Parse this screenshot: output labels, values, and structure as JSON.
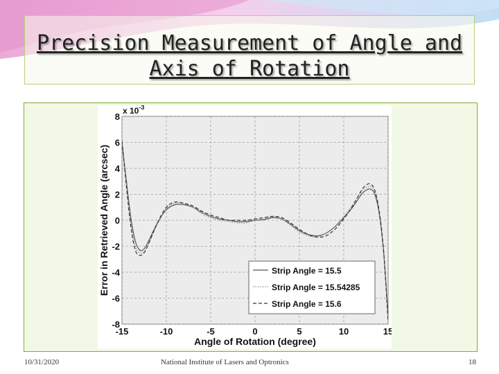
{
  "slide": {
    "title": "Precision Measurement of Angle and Axis of Rotation",
    "footer_date": "10/31/2020",
    "footer_center": "National Institute of Lasers and Optronics",
    "page_number": "18"
  },
  "chart_data": {
    "type": "line",
    "title": "",
    "xlabel": "Angle of Rotation (degree)",
    "ylabel": "Error in Retrieved Angle (arcsec)",
    "y_multiplier": "x 10-3",
    "xlim": [
      -15,
      15
    ],
    "ylim": [
      -8,
      8
    ],
    "xticks": [
      -15,
      -10,
      -5,
      0,
      5,
      10,
      15
    ],
    "yticks": [
      -8,
      -6,
      -4,
      -2,
      0,
      2,
      4,
      6,
      8
    ],
    "grid": true,
    "legend_position": "bottom-right",
    "x": [
      -15,
      -14.5,
      -14,
      -13.5,
      -13,
      -12.5,
      -12,
      -11,
      -10,
      -9,
      -8,
      -7,
      -6,
      -5,
      -4,
      -3,
      -2,
      -1,
      0,
      1,
      2,
      3,
      4,
      5,
      6,
      7,
      8,
      9,
      10,
      11,
      12,
      12.5,
      13,
      13.5,
      14,
      14.5,
      15
    ],
    "series": [
      {
        "name": "Strip Angle = 15.5",
        "dash": "solid",
        "values": [
          6.0,
          3.0,
          0.2,
          -1.6,
          -2.3,
          -2.2,
          -1.6,
          -0.2,
          0.8,
          1.2,
          1.2,
          1.0,
          0.6,
          0.3,
          0.1,
          0.0,
          -0.1,
          -0.1,
          0.0,
          0.05,
          0.2,
          0.1,
          -0.3,
          -0.8,
          -1.1,
          -1.2,
          -1.0,
          -0.5,
          0.2,
          1.0,
          2.0,
          2.3,
          2.4,
          2.0,
          0.5,
          -2.5,
          -7.4
        ]
      },
      {
        "name": "Strip Angle = 15.54285",
        "dash": "dotted",
        "values": [
          6.0,
          2.8,
          -0.2,
          -2.0,
          -2.5,
          -2.4,
          -1.8,
          -0.3,
          0.9,
          1.3,
          1.3,
          1.0,
          0.5,
          0.2,
          0.0,
          -0.1,
          -0.2,
          -0.2,
          0.0,
          0.1,
          0.25,
          0.1,
          -0.4,
          -0.9,
          -1.2,
          -1.3,
          -1.0,
          -0.5,
          0.3,
          1.2,
          2.2,
          2.5,
          2.6,
          2.2,
          0.6,
          -2.5,
          -7.6
        ]
      },
      {
        "name": "Strip Angle = 15.6",
        "dash": "dashed",
        "values": [
          6.1,
          2.6,
          -0.5,
          -2.3,
          -2.7,
          -2.5,
          -1.8,
          -0.2,
          1.0,
          1.4,
          1.3,
          1.1,
          0.7,
          0.4,
          0.2,
          0.0,
          0.0,
          0.0,
          0.1,
          0.2,
          0.3,
          0.2,
          -0.2,
          -0.7,
          -1.1,
          -1.3,
          -1.2,
          -0.7,
          0.1,
          1.1,
          2.3,
          2.7,
          2.8,
          2.3,
          0.7,
          -2.4,
          -7.8
        ]
      }
    ]
  }
}
